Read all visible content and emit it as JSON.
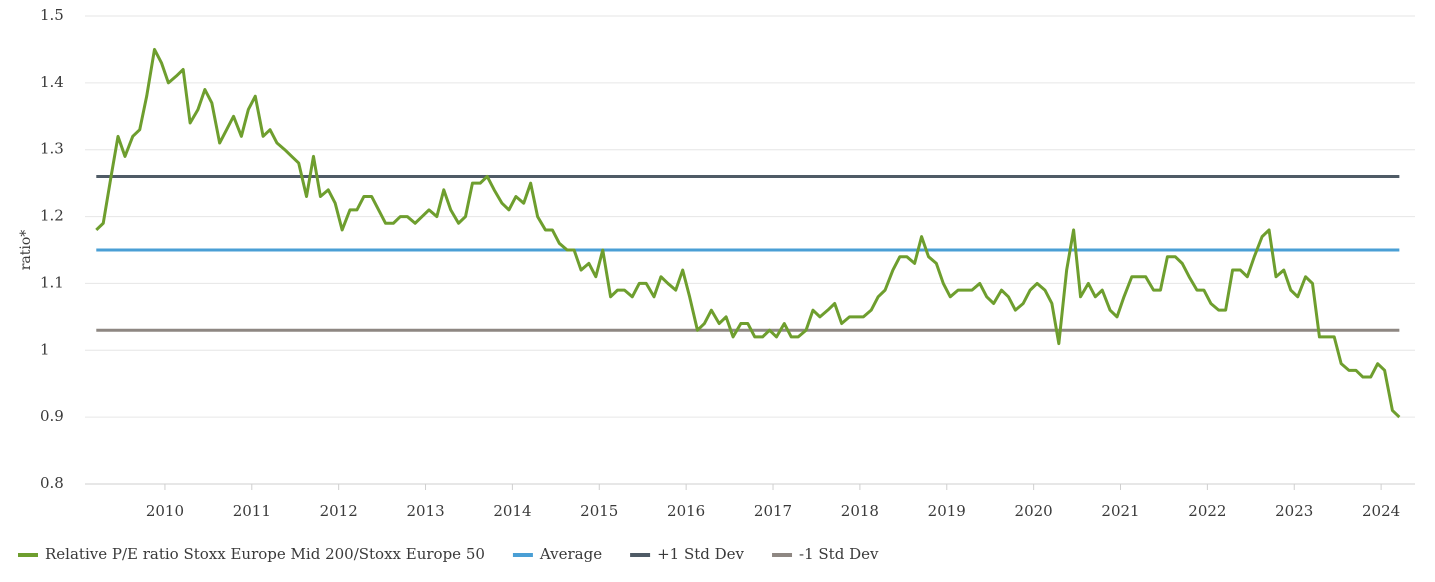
{
  "chart_data": {
    "type": "line",
    "y_label": "ratio*",
    "xlim": [
      2009.08,
      2024.39
    ],
    "xticks": [
      2010,
      2011,
      2012,
      2013,
      2014,
      2015,
      2016,
      2017,
      2018,
      2019,
      2020,
      2021,
      2022,
      2023,
      2024
    ],
    "ylim": [
      0.8,
      1.5
    ],
    "yticks": [
      0.8,
      0.9,
      1,
      1.1,
      1.2,
      1.3,
      1.4,
      1.5
    ],
    "grid": true,
    "legend": "bottom",
    "series": [
      {
        "name": "Relative P/E ratio Stoxx Europe Mid 200/Stoxx Europe 50",
        "color": "#6e9e2e",
        "x": [
          2009.21,
          2009.29,
          2009.38,
          2009.46,
          2009.54,
          2009.63,
          2009.71,
          2009.79,
          2009.88,
          2009.96,
          2010.04,
          2010.13,
          2010.21,
          2010.29,
          2010.38,
          2010.46,
          2010.54,
          2010.63,
          2010.71,
          2010.79,
          2010.88,
          2010.96,
          2011.04,
          2011.13,
          2011.21,
          2011.29,
          2011.38,
          2011.46,
          2011.54,
          2011.63,
          2011.71,
          2011.79,
          2011.88,
          2011.96,
          2012.04,
          2012.13,
          2012.21,
          2012.29,
          2012.38,
          2012.46,
          2012.54,
          2012.63,
          2012.71,
          2012.79,
          2012.88,
          2012.96,
          2013.04,
          2013.13,
          2013.21,
          2013.29,
          2013.38,
          2013.46,
          2013.54,
          2013.63,
          2013.71,
          2013.79,
          2013.88,
          2013.96,
          2014.04,
          2014.13,
          2014.21,
          2014.29,
          2014.38,
          2014.46,
          2014.54,
          2014.63,
          2014.71,
          2014.79,
          2014.88,
          2014.96,
          2015.04,
          2015.13,
          2015.21,
          2015.29,
          2015.38,
          2015.46,
          2015.54,
          2015.63,
          2015.71,
          2015.79,
          2015.88,
          2015.96,
          2016.04,
          2016.13,
          2016.21,
          2016.29,
          2016.38,
          2016.46,
          2016.54,
          2016.63,
          2016.71,
          2016.79,
          2016.88,
          2016.96,
          2017.04,
          2017.13,
          2017.21,
          2017.29,
          2017.38,
          2017.46,
          2017.54,
          2017.63,
          2017.71,
          2017.79,
          2017.88,
          2017.96,
          2018.04,
          2018.13,
          2018.21,
          2018.29,
          2018.38,
          2018.46,
          2018.54,
          2018.63,
          2018.71,
          2018.79,
          2018.88,
          2018.96,
          2019.04,
          2019.13,
          2019.21,
          2019.29,
          2019.38,
          2019.46,
          2019.54,
          2019.63,
          2019.71,
          2019.79,
          2019.88,
          2019.96,
          2020.04,
          2020.13,
          2020.21,
          2020.29,
          2020.38,
          2020.46,
          2020.54,
          2020.63,
          2020.71,
          2020.79,
          2020.88,
          2020.96,
          2021.04,
          2021.13,
          2021.21,
          2021.29,
          2021.38,
          2021.46,
          2021.54,
          2021.63,
          2021.71,
          2021.79,
          2021.88,
          2021.96,
          2022.04,
          2022.13,
          2022.21,
          2022.29,
          2022.38,
          2022.46,
          2022.54,
          2022.63,
          2022.71,
          2022.79,
          2022.88,
          2022.96,
          2023.04,
          2023.13,
          2023.21,
          2023.29,
          2023.38,
          2023.46,
          2023.54,
          2023.63,
          2023.71,
          2023.79,
          2023.88,
          2023.96,
          2024.04,
          2024.13,
          2024.21
        ],
        "values": [
          1.18,
          1.19,
          1.26,
          1.32,
          1.29,
          1.32,
          1.33,
          1.38,
          1.45,
          1.43,
          1.4,
          1.41,
          1.42,
          1.34,
          1.36,
          1.39,
          1.37,
          1.31,
          1.33,
          1.35,
          1.32,
          1.36,
          1.38,
          1.32,
          1.33,
          1.31,
          1.3,
          1.29,
          1.28,
          1.23,
          1.29,
          1.23,
          1.24,
          1.22,
          1.18,
          1.21,
          1.21,
          1.23,
          1.23,
          1.21,
          1.19,
          1.19,
          1.2,
          1.2,
          1.19,
          1.2,
          1.21,
          1.2,
          1.24,
          1.21,
          1.19,
          1.2,
          1.25,
          1.25,
          1.26,
          1.24,
          1.22,
          1.21,
          1.23,
          1.22,
          1.25,
          1.2,
          1.18,
          1.18,
          1.16,
          1.15,
          1.15,
          1.12,
          1.13,
          1.11,
          1.15,
          1.08,
          1.09,
          1.09,
          1.08,
          1.1,
          1.1,
          1.08,
          1.11,
          1.1,
          1.09,
          1.12,
          1.08,
          1.03,
          1.04,
          1.06,
          1.04,
          1.05,
          1.02,
          1.04,
          1.04,
          1.02,
          1.02,
          1.03,
          1.02,
          1.04,
          1.02,
          1.02,
          1.03,
          1.06,
          1.05,
          1.06,
          1.07,
          1.04,
          1.05,
          1.05,
          1.05,
          1.06,
          1.08,
          1.09,
          1.12,
          1.14,
          1.14,
          1.13,
          1.17,
          1.14,
          1.13,
          1.1,
          1.08,
          1.09,
          1.09,
          1.09,
          1.1,
          1.08,
          1.07,
          1.09,
          1.08,
          1.06,
          1.07,
          1.09,
          1.1,
          1.09,
          1.07,
          1.01,
          1.12,
          1.18,
          1.08,
          1.1,
          1.08,
          1.09,
          1.06,
          1.05,
          1.08,
          1.11,
          1.11,
          1.11,
          1.09,
          1.09,
          1.14,
          1.14,
          1.13,
          1.11,
          1.09,
          1.09,
          1.07,
          1.06,
          1.06,
          1.12,
          1.12,
          1.11,
          1.14,
          1.17,
          1.18,
          1.11,
          1.12,
          1.09,
          1.08,
          1.11,
          1.1,
          1.02,
          1.02,
          1.02,
          0.98,
          0.97,
          0.97,
          0.96,
          0.96,
          0.98,
          0.97,
          0.91,
          0.9
        ]
      },
      {
        "name": "Average",
        "color": "#4a9fd5",
        "x": [
          2009.21,
          2024.21
        ],
        "values": [
          1.15,
          1.15
        ]
      },
      {
        "name": "+1 Std Dev",
        "color": "#4f5b66",
        "x": [
          2009.21,
          2024.21
        ],
        "values": [
          1.26,
          1.26
        ]
      },
      {
        "name": "-1 Std Dev",
        "color": "#8e8782",
        "x": [
          2009.21,
          2024.21
        ],
        "values": [
          1.03,
          1.03
        ]
      }
    ]
  }
}
